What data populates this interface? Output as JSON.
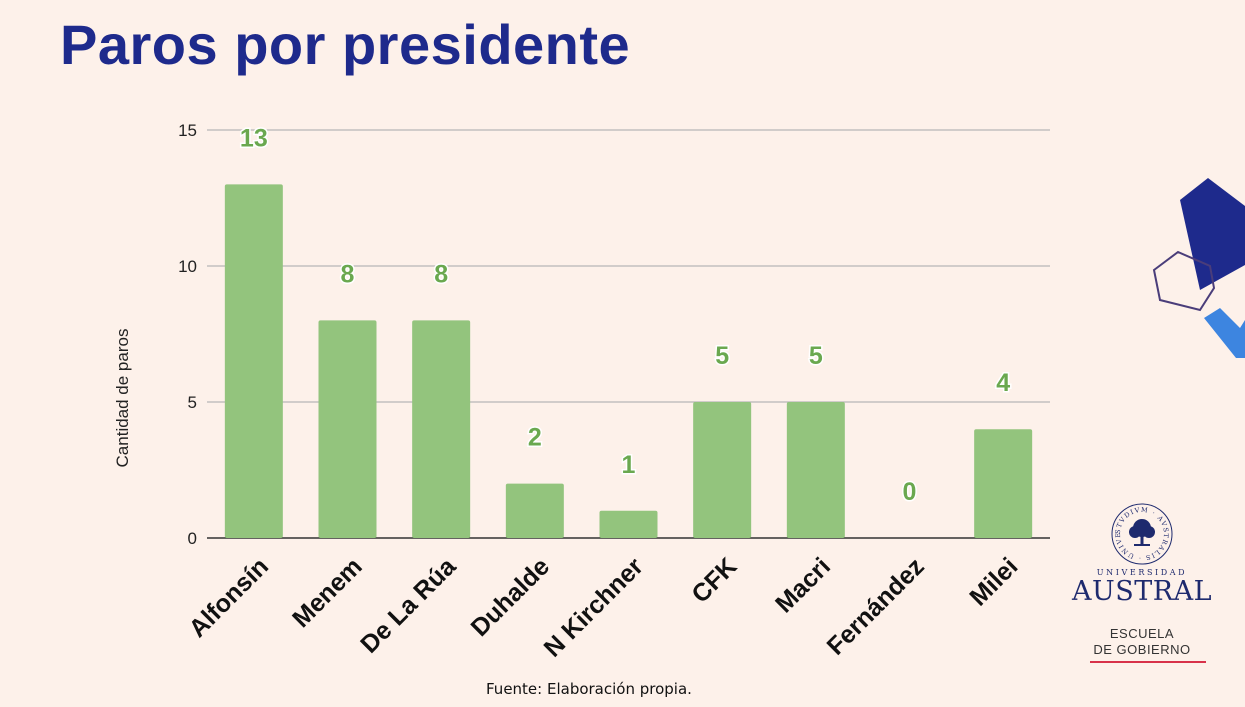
{
  "title": "Paros por presidente",
  "source": "Fuente: Elaboración propia.",
  "logo": {
    "university_word": "UNIVERSIDAD",
    "name": "AUSTRAL",
    "school_line1": "ESCUELA",
    "school_line2": "DE GOBIERNO",
    "seal_text": "STVDIVM · AVSTRALIS · UNIVERSITAS"
  },
  "colors": {
    "background": "#fdf1ea",
    "title": "#1e2a8c",
    "bar": "#93c47d",
    "bar_label": "#6aa84f",
    "grid": "#b7b7b7",
    "accent_navy": "#1e2a8c",
    "accent_blue": "#3d85e0",
    "accent_red": "#d8324a"
  },
  "chart_data": {
    "type": "bar",
    "categories": [
      "Alfonsín",
      "Menem",
      "De La Rúa",
      "Duhalde",
      "N Kirchner",
      "CFK",
      "Macri",
      "Fernández",
      "Milei"
    ],
    "values": [
      13,
      8,
      8,
      2,
      1,
      5,
      5,
      0,
      4
    ],
    "data_labels": [
      "13",
      "8",
      "8",
      "2",
      "1",
      "5",
      "5",
      "0",
      "4"
    ],
    "ylabel": "Cantidad de paros",
    "xlabel": "",
    "ylim": [
      0,
      15
    ],
    "yticks": [
      0,
      5,
      10,
      15
    ],
    "ytick_labels": [
      "0",
      "5",
      "10",
      "15"
    ],
    "grid": true
  }
}
